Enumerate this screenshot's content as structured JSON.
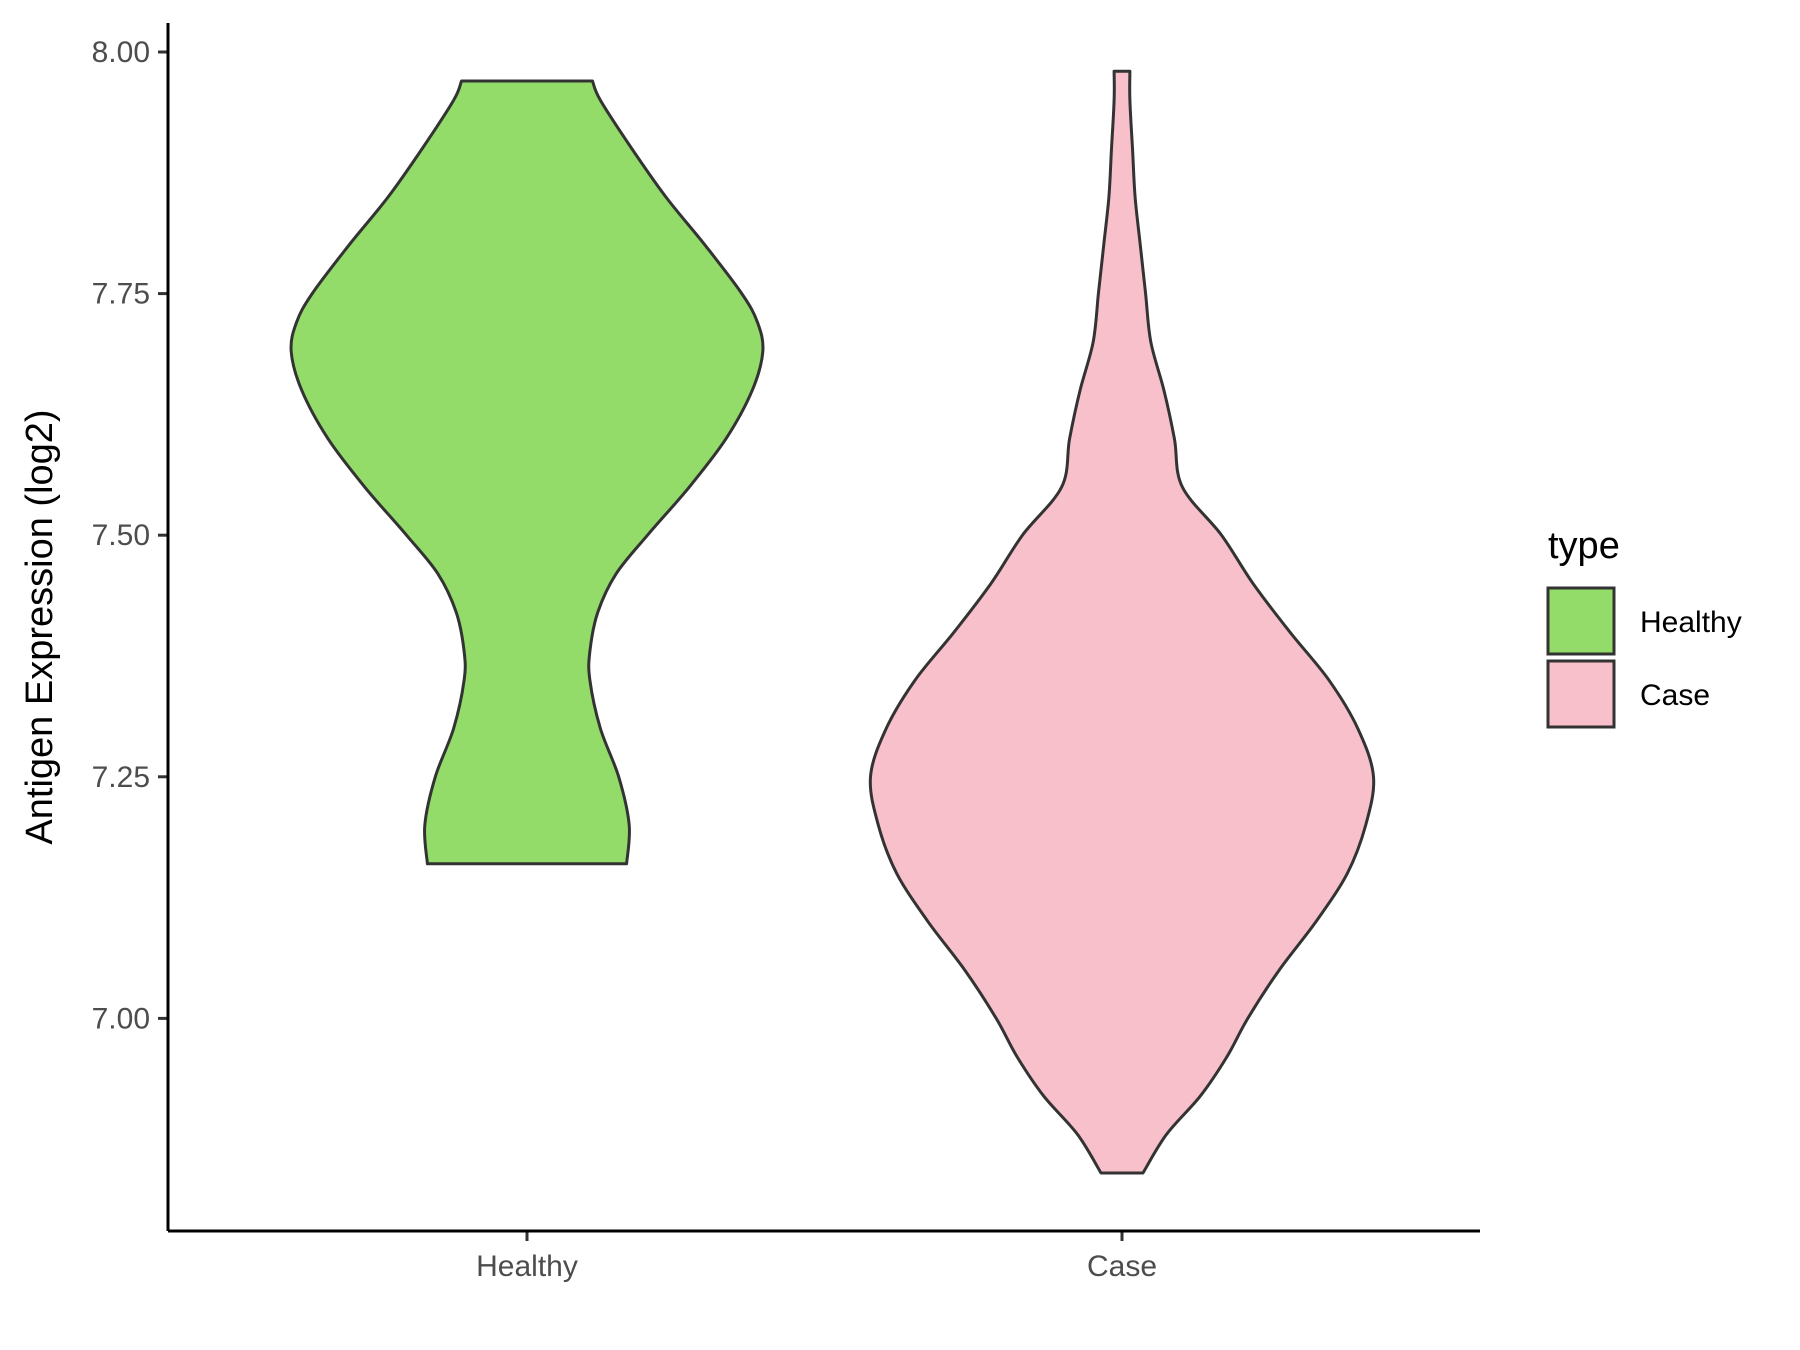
{
  "chart_data": {
    "type": "violin",
    "ylabel": "Antigen Expression (log2)",
    "xlabel": "",
    "categories": [
      "Healthy",
      "Case"
    ],
    "ylim": [
      6.78,
      8.03
    ],
    "yticks": [
      7.0,
      7.25,
      7.5,
      7.75,
      8.0
    ],
    "ytick_labels": [
      "7.00",
      "7.25",
      "7.50",
      "7.75",
      "8.00"
    ],
    "grid": false,
    "legend": {
      "title": "type",
      "placement": "right",
      "entries": [
        {
          "label": "Healthy",
          "color": "#93dc6a"
        },
        {
          "label": "Case",
          "color": "#f8c0cb"
        }
      ]
    },
    "series": [
      {
        "category": "Healthy",
        "color": "#93dc6a",
        "min": 7.16,
        "max": 7.97,
        "density_profile": [
          [
            7.16,
            0.38
          ],
          [
            7.2,
            0.39
          ],
          [
            7.25,
            0.35
          ],
          [
            7.3,
            0.28
          ],
          [
            7.35,
            0.24
          ],
          [
            7.38,
            0.24
          ],
          [
            7.42,
            0.27
          ],
          [
            7.46,
            0.34
          ],
          [
            7.5,
            0.46
          ],
          [
            7.55,
            0.62
          ],
          [
            7.6,
            0.76
          ],
          [
            7.65,
            0.86
          ],
          [
            7.69,
            0.9
          ],
          [
            7.72,
            0.88
          ],
          [
            7.75,
            0.82
          ],
          [
            7.8,
            0.68
          ],
          [
            7.85,
            0.53
          ],
          [
            7.9,
            0.4
          ],
          [
            7.95,
            0.28
          ],
          [
            7.97,
            0.25
          ]
        ]
      },
      {
        "category": "Case",
        "color": "#f8c0cb",
        "min": 6.84,
        "max": 7.98,
        "density_profile": [
          [
            6.84,
            0.08
          ],
          [
            6.88,
            0.17
          ],
          [
            6.92,
            0.3
          ],
          [
            6.96,
            0.4
          ],
          [
            7.0,
            0.48
          ],
          [
            7.05,
            0.6
          ],
          [
            7.1,
            0.74
          ],
          [
            7.15,
            0.86
          ],
          [
            7.2,
            0.93
          ],
          [
            7.25,
            0.96
          ],
          [
            7.3,
            0.9
          ],
          [
            7.35,
            0.79
          ],
          [
            7.4,
            0.64
          ],
          [
            7.45,
            0.5
          ],
          [
            7.5,
            0.38
          ],
          [
            7.55,
            0.23
          ],
          [
            7.6,
            0.2
          ],
          [
            7.65,
            0.16
          ],
          [
            7.7,
            0.11
          ],
          [
            7.75,
            0.09
          ],
          [
            7.8,
            0.07
          ],
          [
            7.85,
            0.05
          ],
          [
            7.9,
            0.04
          ],
          [
            7.95,
            0.03
          ],
          [
            7.98,
            0.03
          ]
        ]
      }
    ]
  }
}
